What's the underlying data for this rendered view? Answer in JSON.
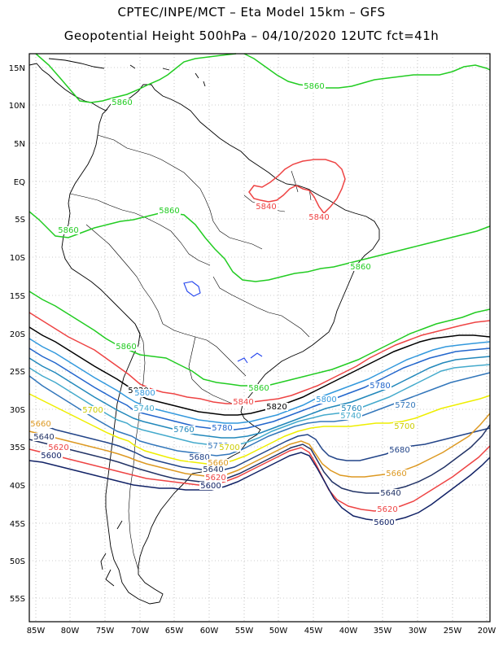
{
  "header": {
    "line1": "CPTEC/INPE/MCT –  Eta Model 15km – GFS",
    "line2": "Geopotential Height 500hPa – 04/10/2020 12UTC fct=41h"
  },
  "axes": {
    "lat_labels": [
      "15N",
      "10N",
      "5N",
      "EQ",
      "5S",
      "10S",
      "15S",
      "20S",
      "25S",
      "30S",
      "35S",
      "40S",
      "45S",
      "50S",
      "55S"
    ],
    "lon_labels": [
      "85W",
      "80W",
      "75W",
      "70W",
      "65W",
      "60W",
      "55W",
      "50W",
      "45W",
      "40W",
      "35W",
      "30W",
      "25W",
      "20W"
    ],
    "grid": "dotted"
  },
  "contours": {
    "levels": [
      {
        "value": "5860",
        "color": "#22cc22"
      },
      {
        "value": "5840",
        "color": "#ee4444"
      },
      {
        "value": "5820",
        "color": "#000000"
      },
      {
        "value": "5800",
        "color": "#3399dd"
      },
      {
        "value": "5780",
        "color": "#2266cc"
      },
      {
        "value": "5760",
        "color": "#2288bb"
      },
      {
        "value": "5740",
        "color": "#44aacc"
      },
      {
        "value": "5720",
        "color": "#3377bb"
      },
      {
        "value": "5700",
        "color": "#eeee00"
      },
      {
        "value": "5680",
        "color": "#224488"
      },
      {
        "value": "5660",
        "color": "#dd9922"
      },
      {
        "value": "5640",
        "color": "#223366"
      },
      {
        "value": "5620",
        "color": "#ee4444"
      },
      {
        "value": "5600",
        "color": "#112266"
      }
    ],
    "labels": [
      {
        "text": "5860",
        "color": "#22cc22"
      },
      {
        "text": "5860",
        "color": "#22cc22"
      },
      {
        "text": "5860",
        "color": "#22cc22"
      },
      {
        "text": "5860",
        "color": "#22cc22"
      },
      {
        "text": "5860",
        "color": "#22cc22"
      },
      {
        "text": "5860",
        "color": "#22cc22"
      },
      {
        "text": "5860",
        "color": "#22cc22"
      },
      {
        "text": "5840",
        "color": "#ee4444"
      },
      {
        "text": "5840",
        "color": "#ee4444"
      },
      {
        "text": "5840",
        "color": "#ee4444"
      },
      {
        "text": "5820",
        "color": "#000000"
      },
      {
        "text": "5820",
        "color": "#000000"
      },
      {
        "text": "5800",
        "color": "#3399dd"
      },
      {
        "text": "5800",
        "color": "#3399dd"
      },
      {
        "text": "5780",
        "color": "#2266cc"
      },
      {
        "text": "5780",
        "color": "#2266cc"
      },
      {
        "text": "5760",
        "color": "#2288bb"
      },
      {
        "text": "5760",
        "color": "#2288bb"
      },
      {
        "text": "5740",
        "color": "#44aacc"
      },
      {
        "text": "5740",
        "color": "#44aacc"
      },
      {
        "text": "5720",
        "color": "#3377bb"
      },
      {
        "text": "5720",
        "color": "#3377bb"
      },
      {
        "text": "5700",
        "color": "#cccc00"
      },
      {
        "text": "5700",
        "color": "#cccc00"
      },
      {
        "text": "5700",
        "color": "#cccc00"
      },
      {
        "text": "5680",
        "color": "#224488"
      },
      {
        "text": "5680",
        "color": "#224488"
      },
      {
        "text": "5660",
        "color": "#dd9922"
      },
      {
        "text": "5660",
        "color": "#dd9922"
      },
      {
        "text": "5660",
        "color": "#dd9922"
      },
      {
        "text": "5640",
        "color": "#223366"
      },
      {
        "text": "5640",
        "color": "#223366"
      },
      {
        "text": "5640",
        "color": "#223366"
      },
      {
        "text": "5620",
        "color": "#ee4444"
      },
      {
        "text": "5620",
        "color": "#ee4444"
      },
      {
        "text": "5620",
        "color": "#ee4444"
      },
      {
        "text": "5600",
        "color": "#112266"
      },
      {
        "text": "5600",
        "color": "#112266"
      },
      {
        "text": "5600",
        "color": "#112266"
      }
    ]
  }
}
